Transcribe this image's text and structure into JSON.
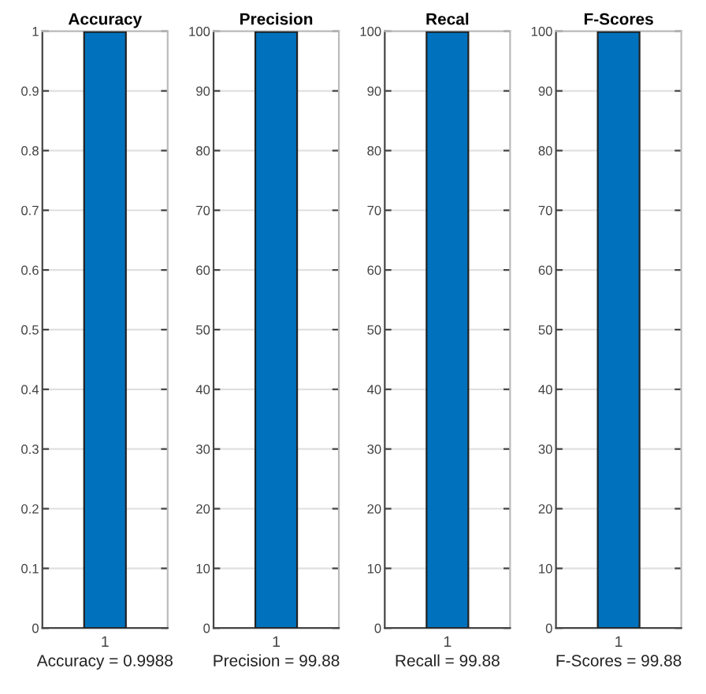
{
  "chart_data": [
    {
      "type": "bar",
      "title": "Accuracy",
      "xlabel": "Accuracy = 0.9988",
      "categories": [
        "1"
      ],
      "values": [
        0.9988
      ],
      "color": "#0072bd",
      "ylim": [
        0,
        1
      ],
      "yticks": [
        0,
        0.1,
        0.2,
        0.3,
        0.4,
        0.5,
        0.6,
        0.7,
        0.8,
        0.9,
        1
      ],
      "grid": "y"
    },
    {
      "type": "bar",
      "title": "Precision",
      "xlabel": "Precision = 99.88",
      "categories": [
        "1"
      ],
      "values": [
        99.88
      ],
      "color": "#0072bd",
      "ylim": [
        0,
        100
      ],
      "yticks": [
        0,
        10,
        20,
        30,
        40,
        50,
        60,
        70,
        80,
        90,
        100
      ],
      "grid": "y"
    },
    {
      "type": "bar",
      "title": "Recal",
      "xlabel": "Recall = 99.88",
      "categories": [
        "1"
      ],
      "values": [
        99.88
      ],
      "color": "#0072bd",
      "ylim": [
        0,
        100
      ],
      "yticks": [
        0,
        10,
        20,
        30,
        40,
        50,
        60,
        70,
        80,
        90,
        100
      ],
      "grid": "y"
    },
    {
      "type": "bar",
      "title": "F-Scores",
      "xlabel": "F-Scores = 99.88",
      "categories": [
        "1"
      ],
      "values": [
        99.88
      ],
      "color": "#0072bd",
      "ylim": [
        0,
        100
      ],
      "yticks": [
        0,
        10,
        20,
        30,
        40,
        50,
        60,
        70,
        80,
        90,
        100
      ],
      "grid": "y"
    }
  ]
}
